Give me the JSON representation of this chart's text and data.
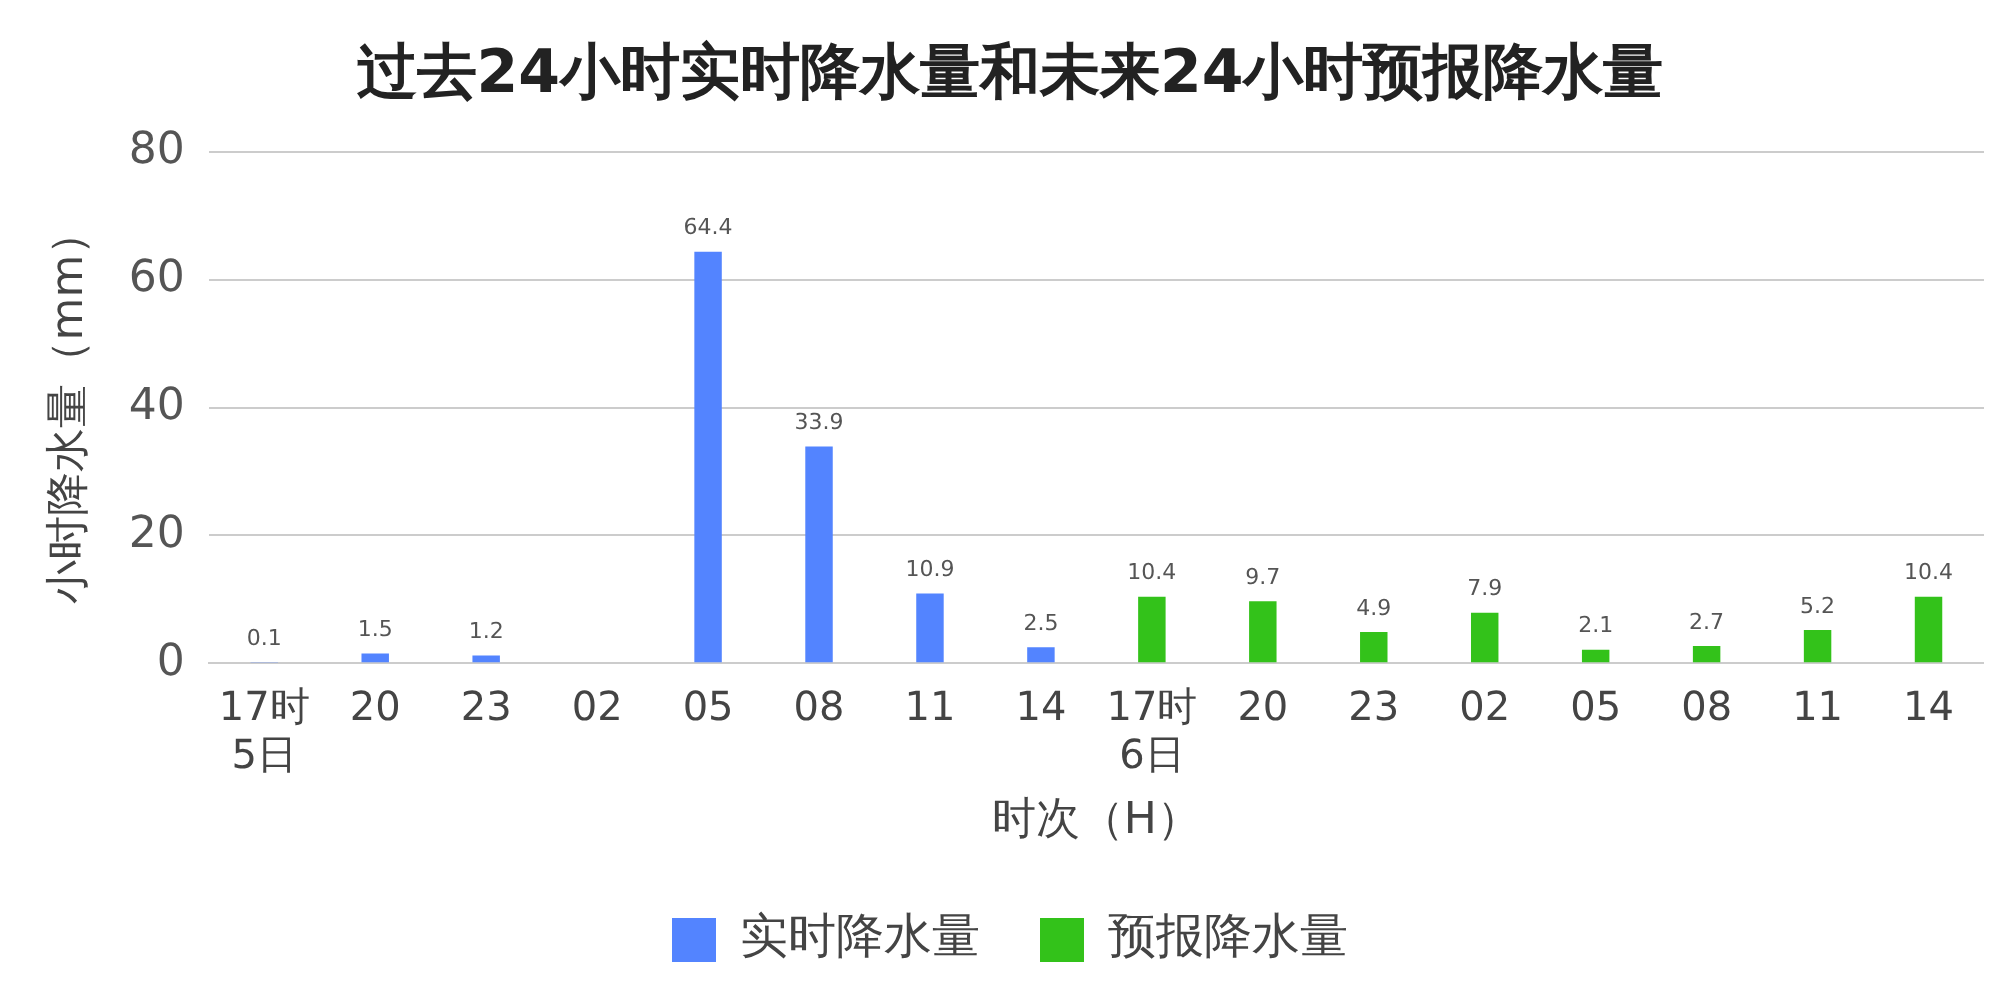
{
  "chart_data": {
    "type": "bar",
    "title": "过去24小时实时降水量和未来24小时预报降水量",
    "xlabel": "时次（H）",
    "ylabel": "小时降水量（mm）",
    "categories": [
      "17时\n5日",
      "20",
      "23",
      "02",
      "05",
      "08",
      "11",
      "14",
      "17时\n6日",
      "20",
      "23",
      "02",
      "05",
      "08",
      "11",
      "14"
    ],
    "series": [
      {
        "name": "实时降水量",
        "color": "#5384ff",
        "values": [
          0.1,
          1.5,
          1.2,
          null,
          64.4,
          33.9,
          10.9,
          2.5,
          null,
          null,
          null,
          null,
          null,
          null,
          null,
          null
        ]
      },
      {
        "name": "预报降水量",
        "color": "#33c21a",
        "values": [
          null,
          null,
          null,
          null,
          null,
          null,
          null,
          null,
          10.4,
          9.7,
          4.9,
          7.9,
          2.1,
          2.7,
          5.2,
          10.4
        ]
      }
    ],
    "ylim": [
      0,
      80
    ],
    "yticks": [
      0,
      20,
      40,
      60,
      80
    ],
    "grid": "y",
    "legend": "bottom",
    "data_labels": true
  }
}
